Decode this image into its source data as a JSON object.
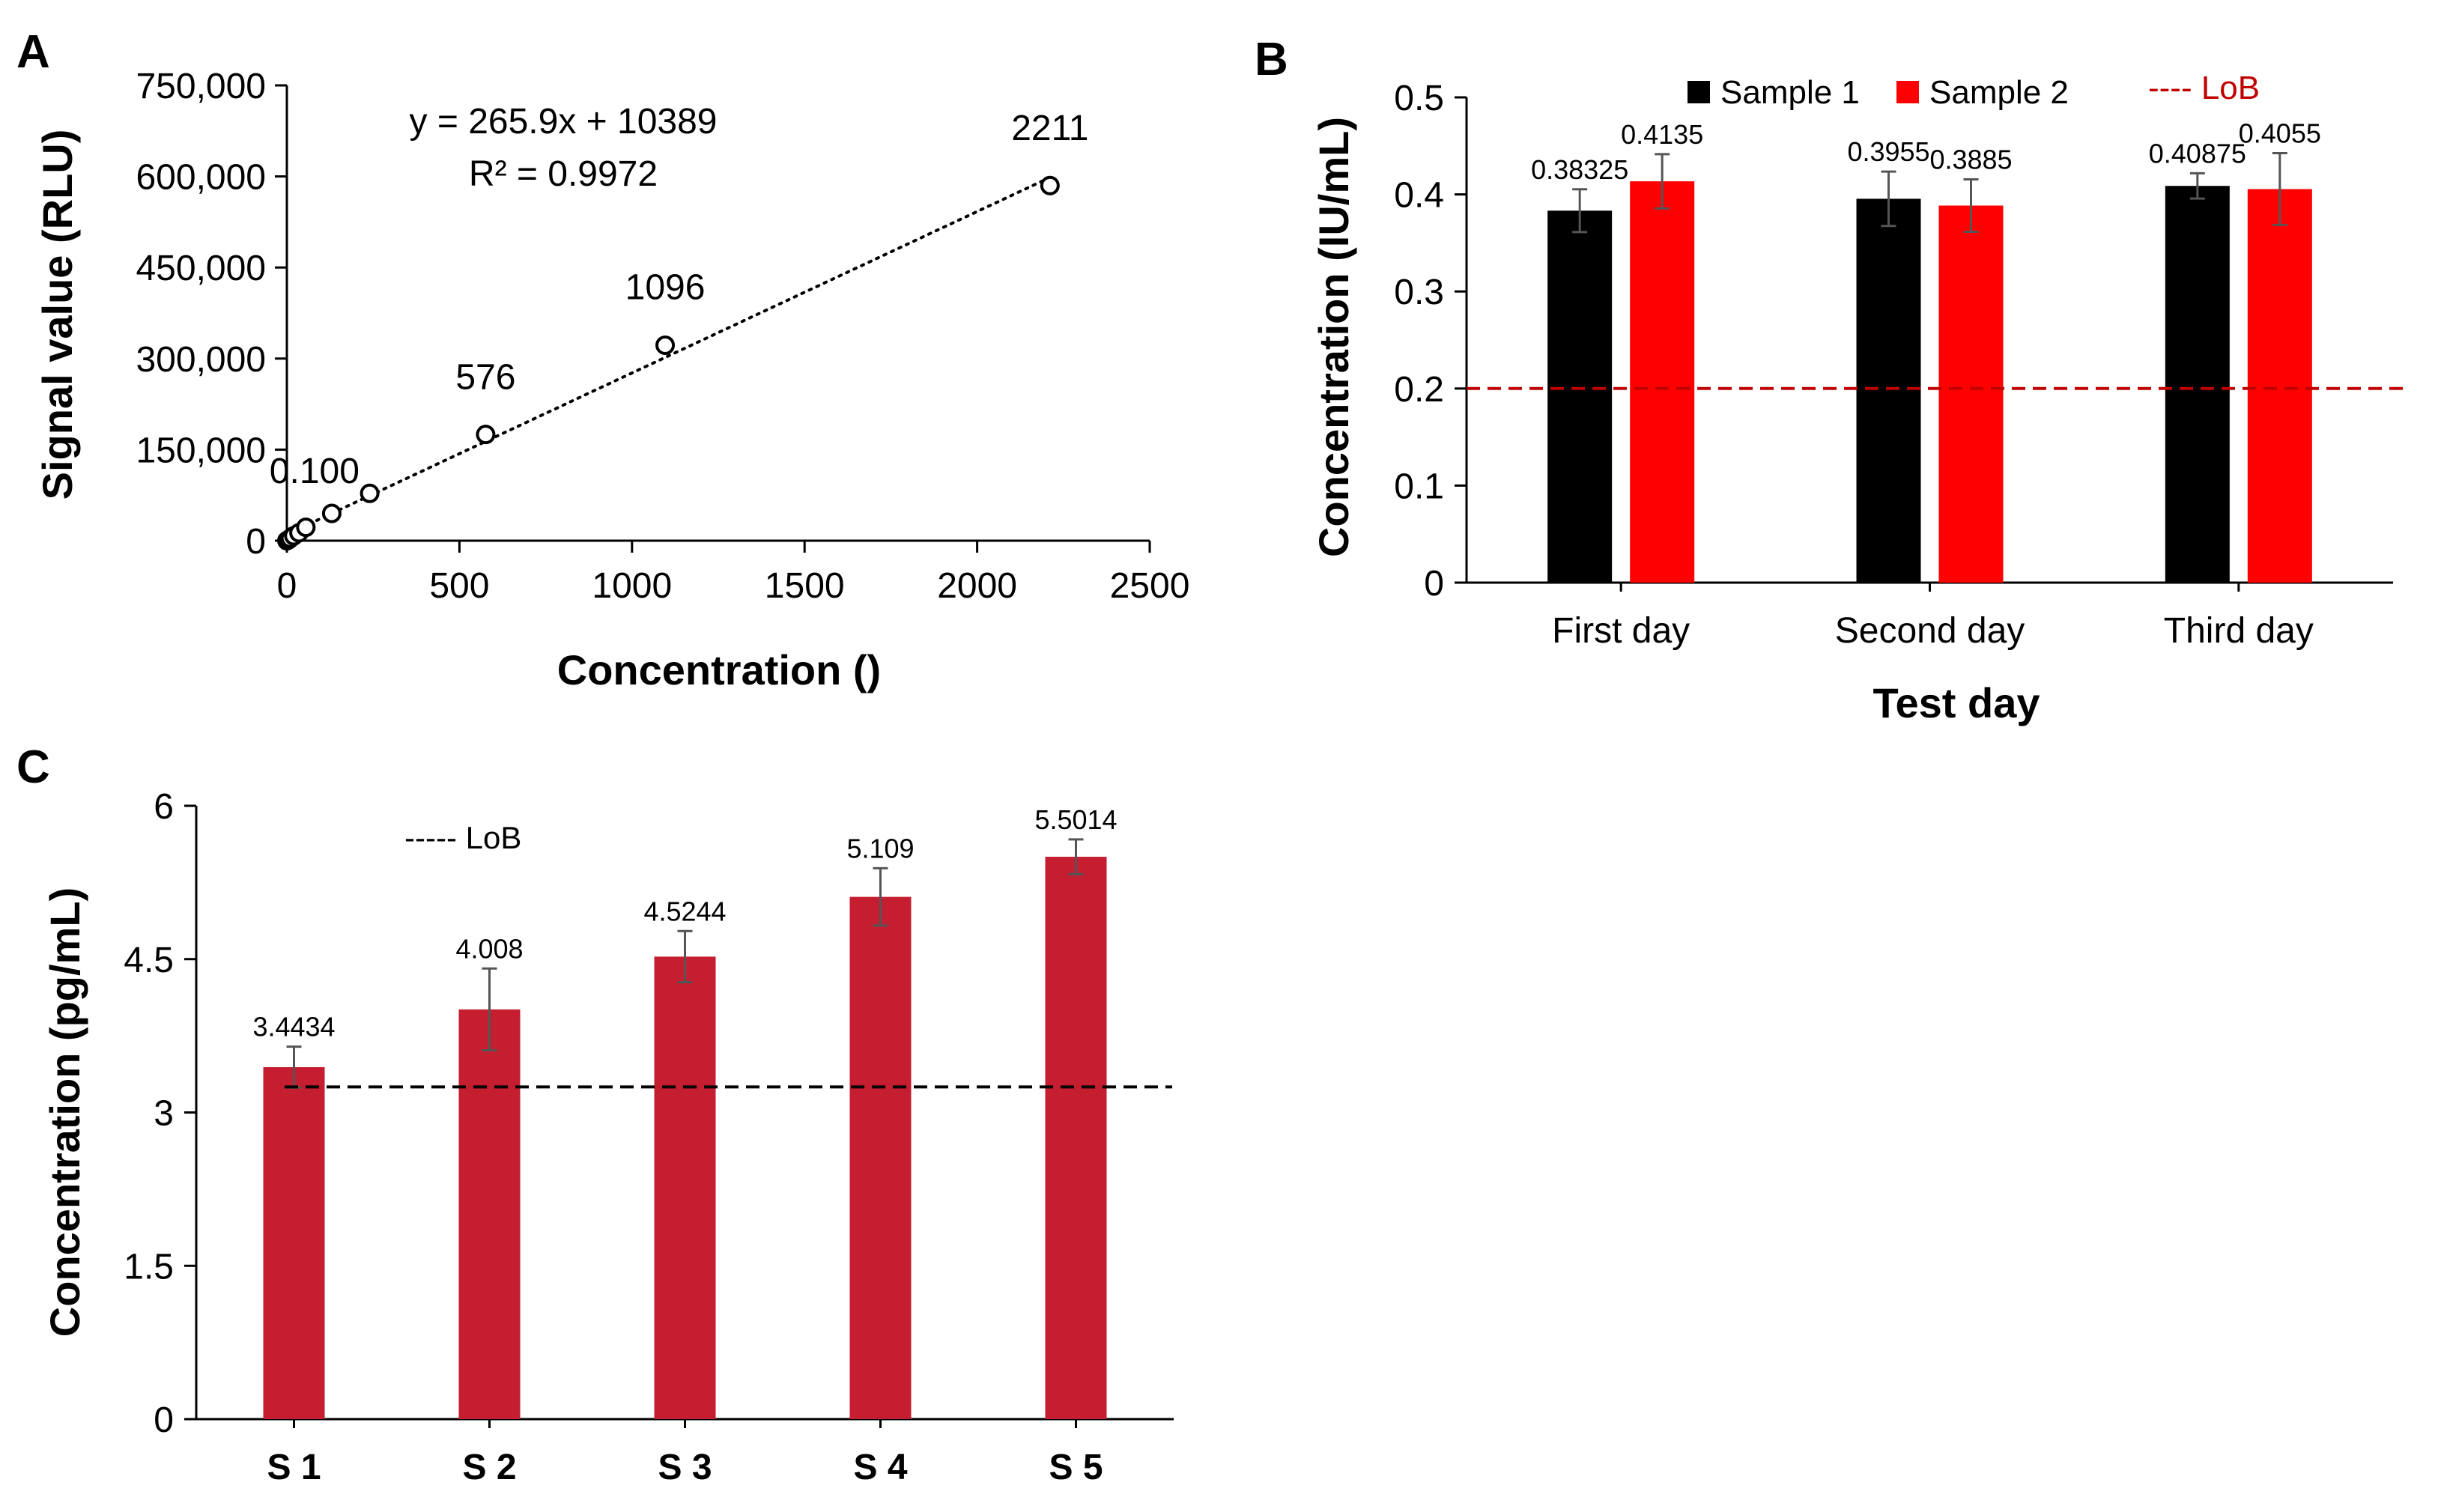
{
  "chart_data": [
    {
      "panel": "A",
      "type": "scatter",
      "xlabel": "Concentration ()",
      "ylabel": "Signal value (RLU)",
      "xlim": [
        0,
        2500
      ],
      "ylim": [
        0,
        750000
      ],
      "x_ticks": [
        "0",
        "500",
        "1000",
        "1500",
        "2000",
        "2500"
      ],
      "y_ticks": [
        "0",
        "150,000",
        "300,000",
        "450,000",
        "600,000",
        "750,000"
      ],
      "equation": "y = 265.9x + 10389",
      "r2": "R² = 0.9972",
      "trendline": {
        "slope": 265.9,
        "intercept": 10389,
        "style": "dotted"
      },
      "points": [
        {
          "x": 0.1,
          "y": 0
        },
        {
          "x": 5,
          "y": 1500
        },
        {
          "x": 10,
          "y": 4000
        },
        {
          "x": 20,
          "y": 8000
        },
        {
          "x": 35,
          "y": 13000
        },
        {
          "x": 55,
          "y": 22000
        },
        {
          "x": 130,
          "y": 45000
        },
        {
          "x": 240,
          "y": 78000
        },
        {
          "x": 576,
          "y": 175000
        },
        {
          "x": 1096,
          "y": 322000
        },
        {
          "x": 2211,
          "y": 585000
        }
      ],
      "point_labels": [
        {
          "text": "0.100",
          "x": 80,
          "y": 95000
        },
        {
          "text": "576",
          "x": 576,
          "y": 250000
        },
        {
          "text": "1096",
          "x": 1096,
          "y": 398000
        },
        {
          "text": "2211",
          "x": 2211,
          "y": 660000
        }
      ]
    },
    {
      "panel": "B",
      "type": "bar",
      "xlabel": "Test day",
      "ylabel": "Concentration (IU/mL)",
      "ylim": [
        0,
        0.5
      ],
      "y_ticks": [
        "0",
        "0.1",
        "0.2",
        "0.3",
        "0.4",
        "0.5"
      ],
      "categories": [
        "First day",
        "Second day",
        "Third day"
      ],
      "series": [
        {
          "name": "Sample 1",
          "color": "#000000",
          "values": [
            0.38325,
            0.3955,
            0.40875
          ],
          "errors": [
            0.022,
            0.028,
            0.013
          ],
          "labels": [
            "0.38325",
            "0.3955",
            "0.40875"
          ]
        },
        {
          "name": "Sample 2",
          "color": "#ff0000",
          "values": [
            0.4135,
            0.3885,
            0.4055
          ],
          "errors": [
            0.028,
            0.027,
            0.037
          ],
          "labels": [
            "0.4135",
            "0.3885",
            "0.4055"
          ]
        }
      ],
      "lob": {
        "value": 0.2,
        "label": "---- LoB",
        "color": "#c00000"
      }
    },
    {
      "panel": "C",
      "type": "bar",
      "xlabel": "",
      "ylabel": "Concentration (pg/mL)",
      "ylim": [
        0,
        6
      ],
      "y_ticks": [
        "0",
        "1.5",
        "3",
        "4.5",
        "6"
      ],
      "categories": [
        "S 1",
        "S 2",
        "S 3",
        "S 4",
        "S 5"
      ],
      "series": [
        {
          "name": "Concentration",
          "color": "#c41e30",
          "values": [
            3.4434,
            4.008,
            4.5244,
            5.109,
            5.5014
          ],
          "errors": [
            0.2,
            0.4,
            0.25,
            0.28,
            0.17
          ],
          "labels": [
            "3.4434",
            "4.008",
            "4.5244",
            "5.109",
            "5.5014"
          ]
        }
      ],
      "lob": {
        "value": 3.25,
        "label": "----- LoB",
        "color": "#000000"
      }
    }
  ]
}
